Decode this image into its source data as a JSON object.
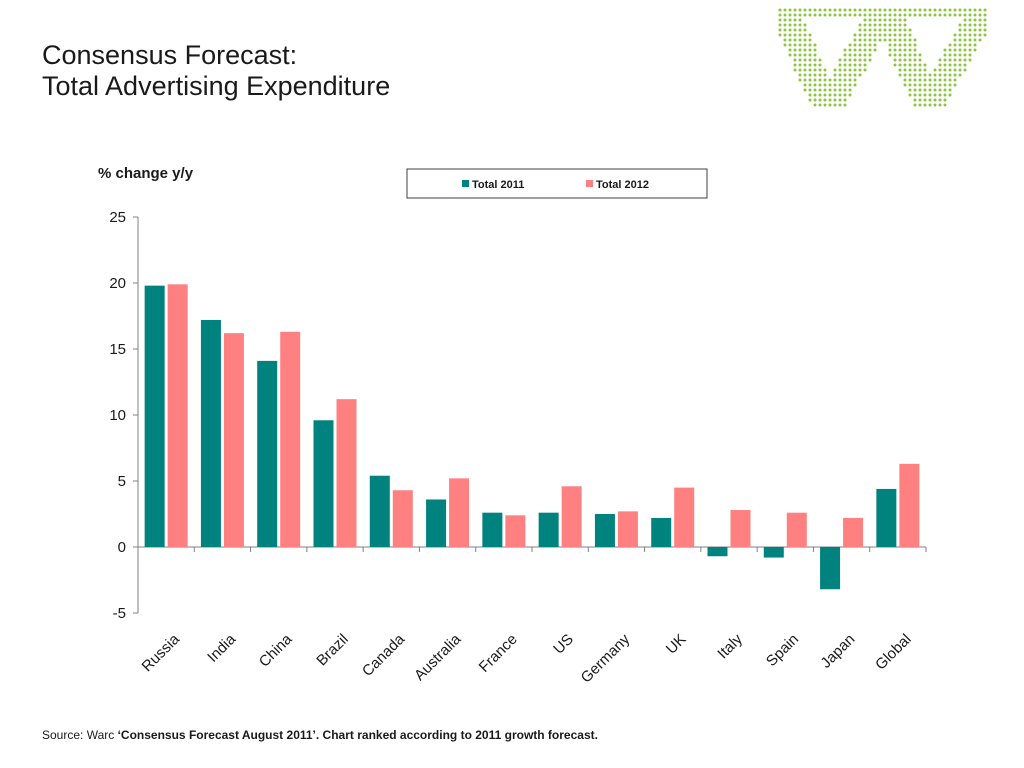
{
  "slide": {
    "title_line1": "Consensus Forecast:",
    "title_line2": "Total Advertising Expenditure",
    "source_prefix": "Source: Warc",
    "source_bold": "‘Consensus Forecast August 2011’. Chart ranked according to 2011 growth forecast.",
    "logo_icon": "warc-w-logo-icon",
    "logo_color": "#8CC63F"
  },
  "chart_data": {
    "type": "bar",
    "ylabel": "% change y/y",
    "ylim": [
      -5,
      25
    ],
    "yticks": [
      -5,
      0,
      5,
      10,
      15,
      20,
      25
    ],
    "grid": false,
    "legend_position": "top-right",
    "categories": [
      "Russia",
      "India",
      "China",
      "Brazil",
      "Canada",
      "Australia",
      "France",
      "US",
      "Germany",
      "UK",
      "Italy",
      "Spain",
      "Japan",
      "Global"
    ],
    "series": [
      {
        "name": "Total 2011",
        "color": "#00827F",
        "values": [
          19.8,
          17.2,
          14.1,
          9.6,
          5.4,
          3.6,
          2.6,
          2.6,
          2.5,
          2.2,
          -0.7,
          -0.8,
          -3.2,
          4.4
        ]
      },
      {
        "name": "Total 2012",
        "color": "#FF8080",
        "values": [
          19.9,
          16.2,
          16.3,
          11.2,
          4.3,
          5.2,
          2.4,
          4.6,
          2.7,
          4.5,
          2.8,
          2.6,
          2.2,
          6.3
        ]
      }
    ]
  }
}
